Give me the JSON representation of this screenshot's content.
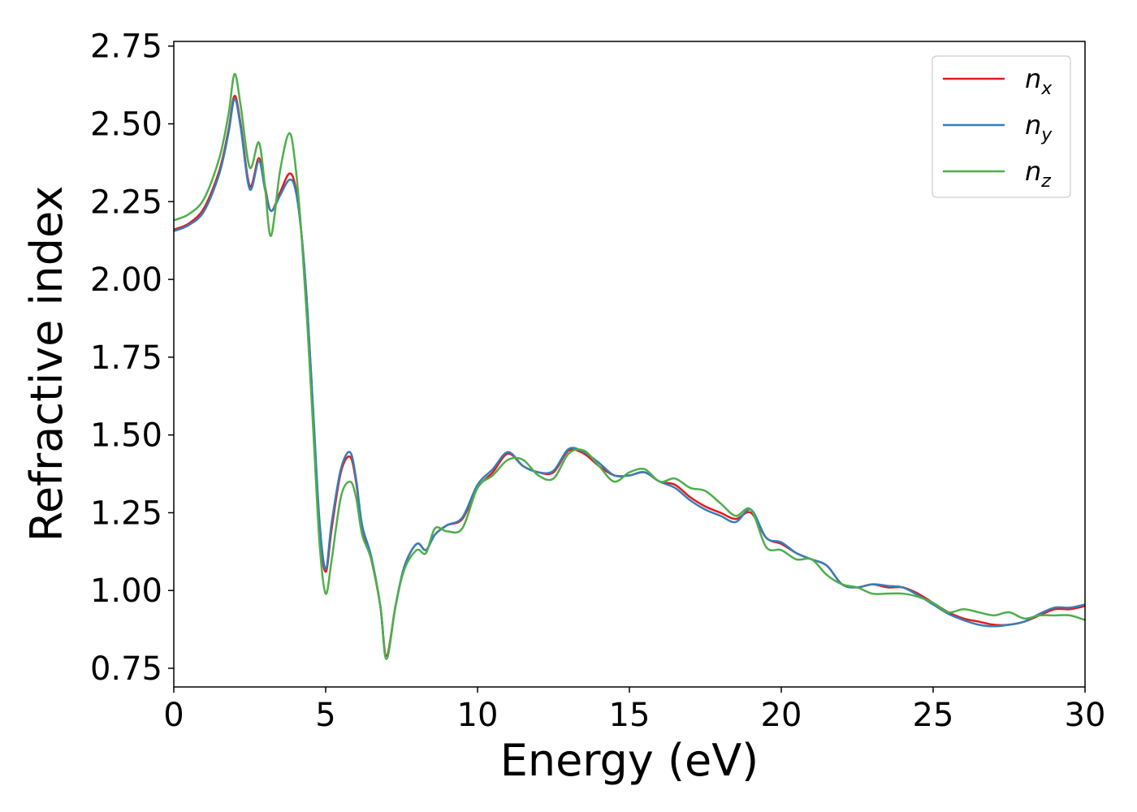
{
  "chart_data": {
    "type": "line",
    "xlabel": "Energy (eV)",
    "ylabel": "Refractive index",
    "xlim": [
      0,
      30
    ],
    "ylim": [
      0.69,
      2.765
    ],
    "xticks": [
      0,
      5,
      10,
      15,
      20,
      25,
      30
    ],
    "xtick_labels": [
      "0",
      "5",
      "10",
      "15",
      "20",
      "25",
      "30"
    ],
    "yticks": [
      0.75,
      1.0,
      1.25,
      1.5,
      1.75,
      2.0,
      2.25,
      2.5,
      2.75
    ],
    "ytick_labels": [
      "0.75",
      "1.00",
      "1.25",
      "1.50",
      "1.75",
      "2.00",
      "2.25",
      "2.50",
      "2.75"
    ],
    "grid": false,
    "legend_position": "top-right",
    "series": [
      {
        "name": "n_x",
        "legend_base": "n",
        "legend_sub": "x",
        "color": "#e41a1c",
        "x": [
          0,
          0.5,
          1.0,
          1.5,
          1.8,
          2.0,
          2.2,
          2.5,
          2.8,
          3.0,
          3.2,
          3.5,
          3.8,
          4.0,
          4.2,
          4.4,
          4.6,
          4.8,
          5.0,
          5.2,
          5.5,
          5.8,
          6.0,
          6.2,
          6.5,
          6.8,
          7.0,
          7.3,
          7.6,
          8.0,
          8.3,
          8.6,
          9.0,
          9.5,
          10.0,
          10.5,
          11.0,
          11.5,
          12.0,
          12.5,
          13.0,
          13.5,
          14.0,
          14.5,
          15.0,
          15.5,
          16.0,
          16.5,
          17.0,
          17.5,
          18.0,
          18.5,
          19.0,
          19.5,
          20.0,
          20.5,
          21.0,
          21.5,
          22.0,
          22.5,
          23.0,
          23.5,
          24.0,
          24.5,
          25.0,
          25.5,
          26.0,
          26.5,
          27.0,
          27.5,
          28.0,
          28.5,
          29.0,
          29.5,
          30.0
        ],
        "y": [
          2.16,
          2.18,
          2.23,
          2.35,
          2.48,
          2.59,
          2.5,
          2.3,
          2.39,
          2.3,
          2.22,
          2.28,
          2.34,
          2.3,
          2.15,
          1.9,
          1.55,
          1.2,
          1.06,
          1.2,
          1.38,
          1.43,
          1.35,
          1.2,
          1.1,
          0.95,
          0.79,
          0.95,
          1.08,
          1.15,
          1.13,
          1.18,
          1.21,
          1.23,
          1.33,
          1.38,
          1.44,
          1.4,
          1.38,
          1.38,
          1.45,
          1.44,
          1.4,
          1.37,
          1.37,
          1.38,
          1.35,
          1.34,
          1.3,
          1.27,
          1.25,
          1.23,
          1.25,
          1.17,
          1.15,
          1.12,
          1.1,
          1.08,
          1.02,
          1.01,
          1.02,
          1.01,
          1.01,
          0.99,
          0.96,
          0.93,
          0.91,
          0.9,
          0.89,
          0.89,
          0.9,
          0.92,
          0.94,
          0.94,
          0.95
        ]
      },
      {
        "name": "n_y",
        "legend_base": "n",
        "legend_sub": "y",
        "color": "#377eb8",
        "x": [
          0,
          0.5,
          1.0,
          1.5,
          1.8,
          2.0,
          2.2,
          2.5,
          2.8,
          3.0,
          3.2,
          3.5,
          3.8,
          4.0,
          4.2,
          4.4,
          4.6,
          4.8,
          5.0,
          5.2,
          5.5,
          5.8,
          6.0,
          6.2,
          6.5,
          6.8,
          7.0,
          7.3,
          7.6,
          8.0,
          8.3,
          8.6,
          9.0,
          9.5,
          10.0,
          10.5,
          11.0,
          11.5,
          12.0,
          12.5,
          13.0,
          13.5,
          14.0,
          14.5,
          15.0,
          15.5,
          16.0,
          16.5,
          17.0,
          17.5,
          18.0,
          18.5,
          19.0,
          19.5,
          20.0,
          20.5,
          21.0,
          21.5,
          22.0,
          22.5,
          23.0,
          23.5,
          24.0,
          24.5,
          25.0,
          25.5,
          26.0,
          26.5,
          27.0,
          27.5,
          28.0,
          28.5,
          29.0,
          29.5,
          30.0
        ],
        "y": [
          2.155,
          2.175,
          2.22,
          2.34,
          2.47,
          2.58,
          2.49,
          2.29,
          2.38,
          2.29,
          2.22,
          2.27,
          2.32,
          2.29,
          2.15,
          1.9,
          1.56,
          1.22,
          1.07,
          1.22,
          1.39,
          1.445,
          1.36,
          1.21,
          1.11,
          0.95,
          0.78,
          0.95,
          1.08,
          1.15,
          1.13,
          1.18,
          1.21,
          1.235,
          1.34,
          1.39,
          1.445,
          1.4,
          1.38,
          1.385,
          1.455,
          1.445,
          1.41,
          1.37,
          1.37,
          1.38,
          1.35,
          1.33,
          1.29,
          1.26,
          1.24,
          1.22,
          1.26,
          1.17,
          1.155,
          1.12,
          1.1,
          1.08,
          1.02,
          1.01,
          1.02,
          1.015,
          1.01,
          0.985,
          0.955,
          0.925,
          0.905,
          0.89,
          0.885,
          0.89,
          0.9,
          0.925,
          0.945,
          0.945,
          0.955
        ]
      },
      {
        "name": "n_z",
        "legend_base": "n",
        "legend_sub": "z",
        "color": "#4daf4a",
        "x": [
          0,
          0.5,
          1.0,
          1.5,
          1.8,
          2.0,
          2.2,
          2.5,
          2.8,
          3.0,
          3.2,
          3.5,
          3.8,
          4.0,
          4.2,
          4.4,
          4.6,
          4.8,
          5.0,
          5.2,
          5.5,
          5.8,
          6.0,
          6.2,
          6.5,
          6.8,
          7.0,
          7.3,
          7.6,
          8.0,
          8.3,
          8.6,
          9.0,
          9.5,
          10.0,
          10.5,
          11.0,
          11.5,
          12.0,
          12.5,
          13.0,
          13.5,
          14.0,
          14.5,
          15.0,
          15.5,
          16.0,
          16.5,
          17.0,
          17.5,
          18.0,
          18.5,
          19.0,
          19.5,
          20.0,
          20.5,
          21.0,
          21.5,
          22.0,
          22.5,
          23.0,
          23.5,
          24.0,
          24.5,
          25.0,
          25.5,
          26.0,
          26.5,
          27.0,
          27.5,
          28.0,
          28.5,
          29.0,
          29.5,
          30.0
        ],
        "y": [
          2.19,
          2.21,
          2.26,
          2.39,
          2.53,
          2.66,
          2.56,
          2.36,
          2.44,
          2.3,
          2.14,
          2.35,
          2.47,
          2.37,
          2.15,
          1.85,
          1.5,
          1.15,
          0.99,
          1.1,
          1.3,
          1.35,
          1.3,
          1.18,
          1.1,
          0.95,
          0.78,
          0.95,
          1.07,
          1.13,
          1.12,
          1.2,
          1.19,
          1.2,
          1.33,
          1.37,
          1.42,
          1.42,
          1.37,
          1.36,
          1.44,
          1.45,
          1.4,
          1.35,
          1.38,
          1.39,
          1.35,
          1.36,
          1.33,
          1.32,
          1.28,
          1.24,
          1.26,
          1.14,
          1.13,
          1.1,
          1.1,
          1.05,
          1.02,
          1.01,
          0.99,
          0.99,
          0.99,
          0.98,
          0.96,
          0.93,
          0.94,
          0.93,
          0.92,
          0.93,
          0.91,
          0.92,
          0.92,
          0.92,
          0.905
        ]
      }
    ]
  }
}
